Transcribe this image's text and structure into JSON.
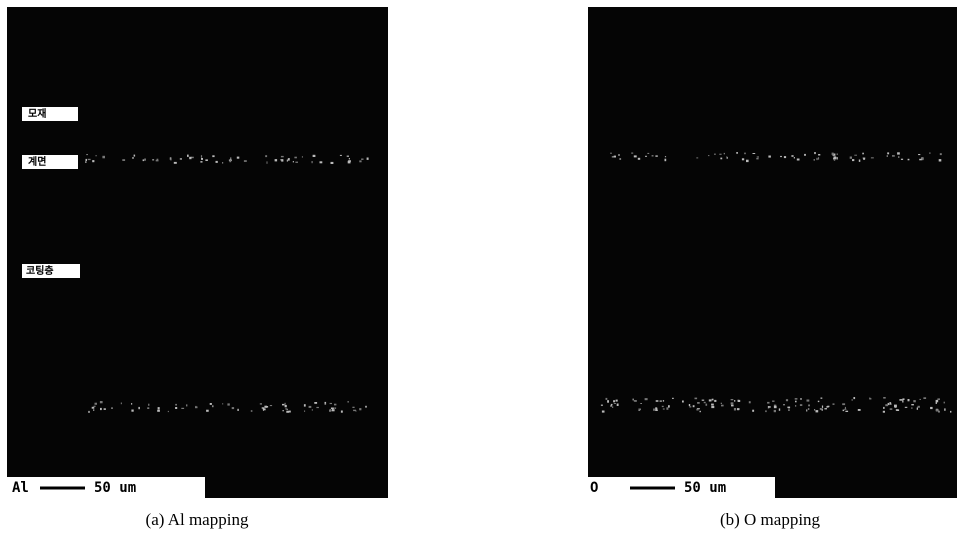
{
  "panels": [
    {
      "labels": [
        "모재",
        "계면",
        "코팅층"
      ],
      "element": "Al",
      "scale_label": "50 um",
      "caption": "(a) Al mapping"
    },
    {
      "element": "O",
      "scale_label": "50 um",
      "caption": "(b) O mapping"
    }
  ]
}
